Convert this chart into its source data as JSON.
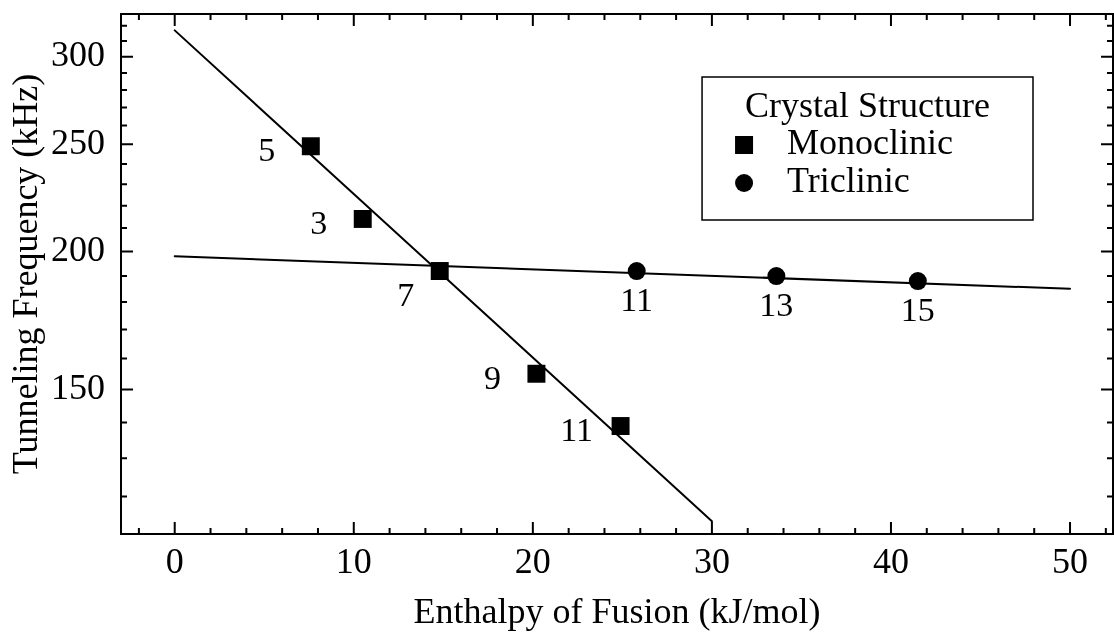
{
  "chart_data": {
    "type": "scatter",
    "xlabel": "Enthalpy of Fusion (kJ/mol)",
    "ylabel": "Tunneling Frequency (kHz)",
    "legend_title": "Crystal Structure",
    "legend": "top right",
    "log": "y",
    "xlim": [
      -3,
      52.4
    ],
    "xticks": [
      {
        "value": -2,
        "label": null
      },
      0,
      {
        "value": 2,
        "label": null
      },
      {
        "value": 4,
        "label": null
      },
      {
        "value": 6,
        "label": null
      },
      {
        "value": 8,
        "label": null
      },
      10,
      {
        "value": 12,
        "label": null
      },
      {
        "value": 14,
        "label": null
      },
      {
        "value": 16,
        "label": null
      },
      {
        "value": 18,
        "label": null
      },
      20,
      {
        "value": 22,
        "label": null
      },
      {
        "value": 24,
        "label": null
      },
      {
        "value": 26,
        "label": null
      },
      {
        "value": 28,
        "label": null
      },
      30,
      {
        "value": 32,
        "label": null
      },
      {
        "value": 34,
        "label": null
      },
      {
        "value": 36,
        "label": null
      },
      {
        "value": 38,
        "label": null
      },
      40,
      {
        "value": 42,
        "label": null
      },
      {
        "value": 44,
        "label": null
      },
      {
        "value": 46,
        "label": null
      },
      {
        "value": 48,
        "label": null
      },
      50,
      {
        "value": 52,
        "label": null
      }
    ],
    "ylim": [
      111,
      328
    ],
    "yticks": [
      {
        "value": 120,
        "label": null
      },
      {
        "value": 130,
        "label": null
      },
      {
        "value": 140,
        "label": null
      },
      150,
      {
        "value": 160,
        "label": null
      },
      {
        "value": 170,
        "label": null
      },
      {
        "value": 180,
        "label": null
      },
      {
        "value": 190,
        "label": null
      },
      200,
      {
        "value": 210,
        "label": null
      },
      {
        "value": 220,
        "label": null
      },
      {
        "value": 230,
        "label": null
      },
      {
        "value": 240,
        "label": null
      },
      250,
      {
        "value": 260,
        "label": null
      },
      {
        "value": 270,
        "label": null
      },
      {
        "value": 280,
        "label": null
      },
      {
        "value": 290,
        "label": null
      },
      300,
      {
        "value": 310,
        "label": null
      },
      {
        "value": 320,
        "label": null
      }
    ],
    "series": [
      {
        "name": "Monoclinic",
        "type": "scatter",
        "marker": "square",
        "color": "#000000",
        "x": [
          7.6,
          10.5,
          14.8,
          20.2,
          24.9
        ],
        "values": [
          249,
          214,
          192,
          155,
          139
        ]
      },
      {
        "name": "Triclinic",
        "type": "scatter",
        "marker": "circle",
        "color": "#000000",
        "x": [
          25.8,
          33.6,
          41.5
        ],
        "values": [
          192,
          190,
          188
        ]
      },
      {
        "type": "line",
        "color": "#000000",
        "x": [
          0,
          30
        ],
        "values": [
          317,
          114
        ]
      },
      {
        "type": "line",
        "color": "#000000",
        "x": [
          0,
          50
        ],
        "values": [
          198,
          185
        ]
      }
    ],
    "annotations": [
      {
        "text": "5",
        "x": 7.6,
        "y": 249
      },
      {
        "text": "3",
        "x": 10.5,
        "y": 214
      },
      {
        "text": "7",
        "x": 14.8,
        "y": 192
      },
      {
        "text": "9",
        "x": 20.2,
        "y": 155
      },
      {
        "text": "11",
        "x": 24.9,
        "y": 139
      },
      {
        "text": "11",
        "x": 25.8,
        "y": 192
      },
      {
        "text": "13",
        "x": 33.6,
        "y": 190
      },
      {
        "text": "15",
        "x": 41.5,
        "y": 188
      }
    ]
  }
}
